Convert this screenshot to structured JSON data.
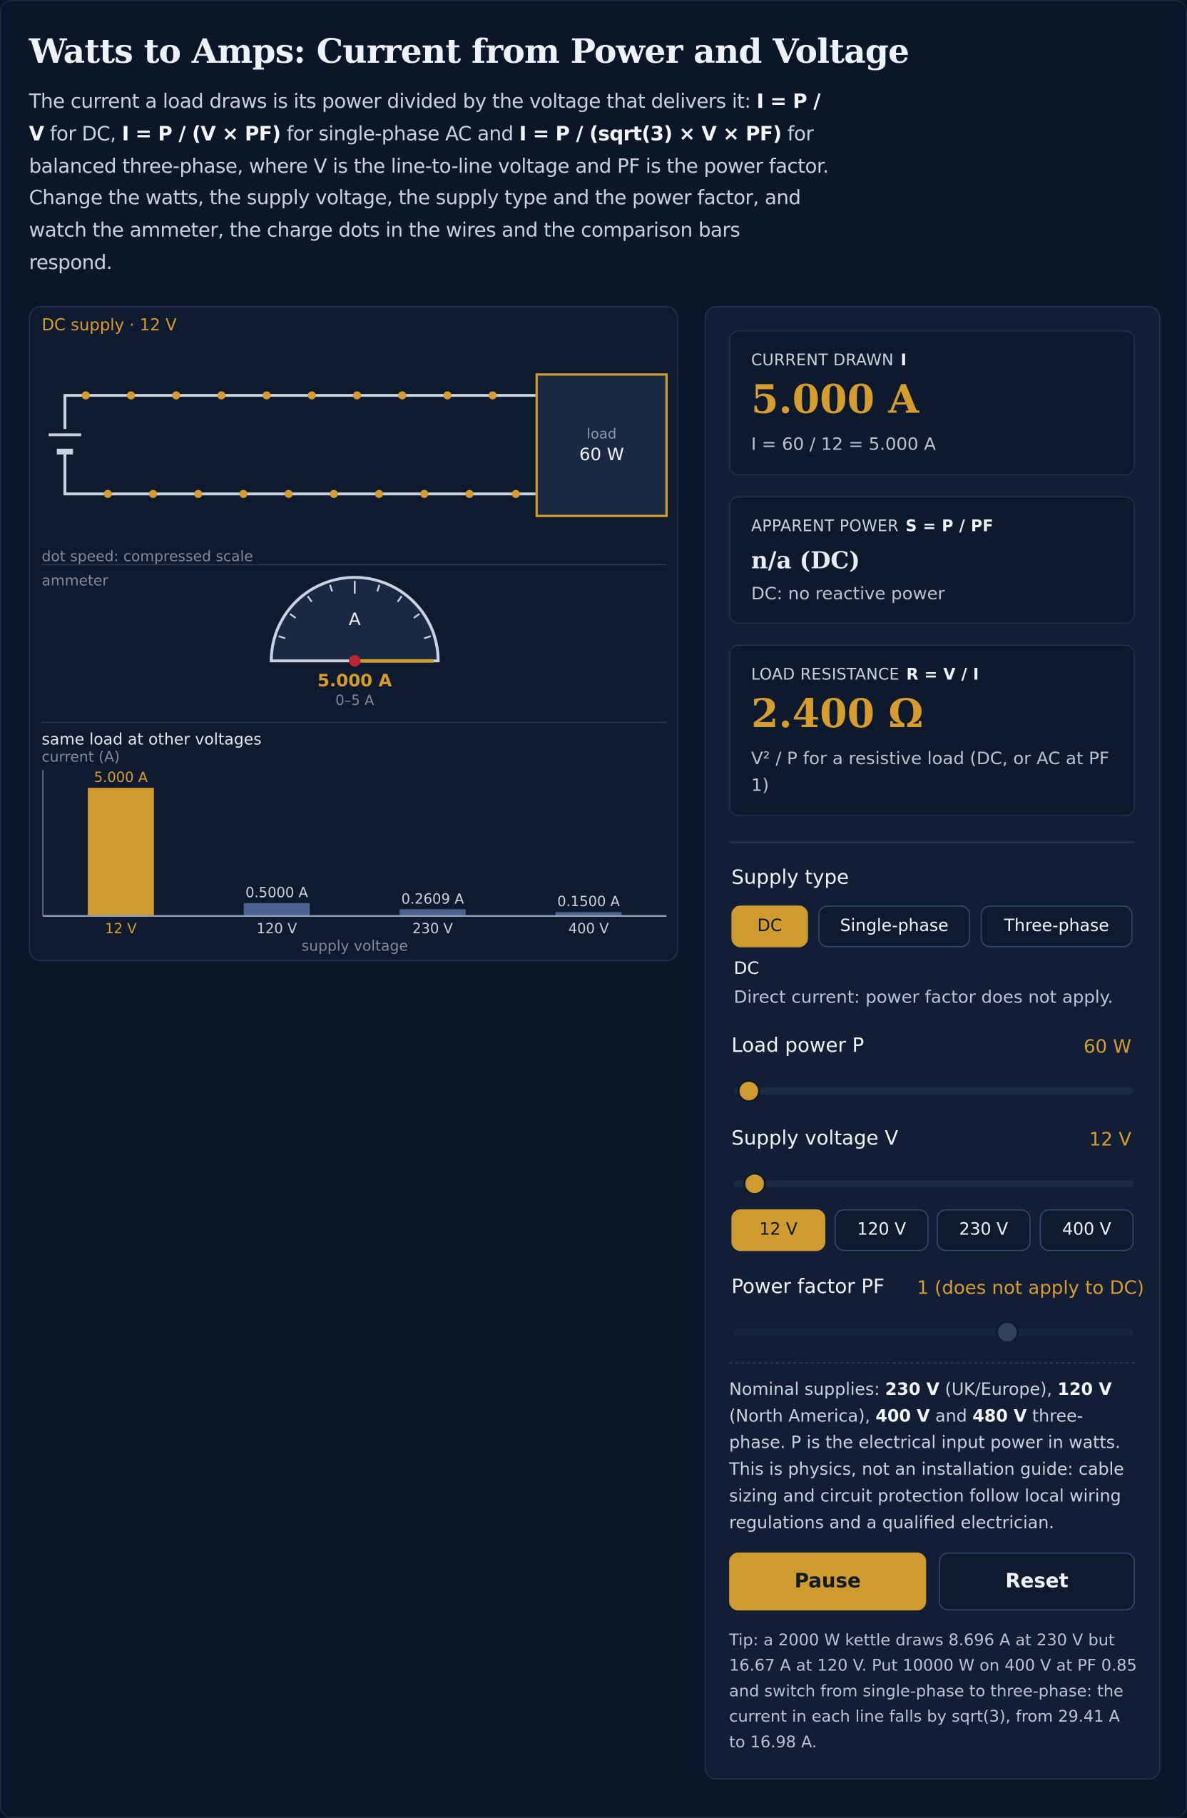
{
  "header": {
    "title": "Watts to Amps: Current from Power and Voltage",
    "intro": [
      "The current a load draws is its power divided by the voltage that delivers it: ",
      "I = P / V",
      " for DC, ",
      "I = P / (V × PF)",
      " for single-phase AC and ",
      "I = P / (sqrt(3) × V × PF)",
      " for balanced three-phase, where V is the line-to-line voltage and PF is the power factor. Change the watts, the supply voltage, the supply type and the power factor, and watch the ammeter, the charge dots in the wires and the comparison bars respond."
    ]
  },
  "circuit": {
    "supply_label": "DC supply · 12 V",
    "load_label": "load",
    "load_power": "60 W",
    "dot_note": "dot speed: compressed scale"
  },
  "ammeter": {
    "title": "ammeter",
    "unit": "A",
    "reading": "5.000 A",
    "range": "0–5 A"
  },
  "chart_data": {
    "type": "bar",
    "title": "same load at other voltages",
    "y_label": "current (A)",
    "x_label": "supply voltage",
    "categories": [
      "12 V",
      "120 V",
      "230 V",
      "400 V"
    ],
    "values": [
      5.0,
      0.5,
      0.2609,
      0.15
    ],
    "value_labels": [
      "5.000 A",
      "0.5000 A",
      "0.2609 A",
      "0.1500 A"
    ],
    "ylim": [
      0,
      5.7
    ],
    "color": "#4a6390",
    "highlight_color": "#cf9a2e",
    "highlight": 0
  },
  "readouts": [
    {
      "label": "CURRENT DRAWN",
      "formula": "I",
      "value": "5.000 A",
      "detail": "I = 60 / 12 = 5.000 A"
    },
    {
      "label": "APPARENT POWER",
      "formula": "S = P / PF",
      "value": "n/a (DC)",
      "detail": "DC: no reactive power"
    },
    {
      "label": "LOAD RESISTANCE",
      "formula": "R = V / I",
      "value": "2.400 Ω",
      "detail": "V² / P for a resistive load (DC, or AC at PF 1)"
    }
  ],
  "controls": {
    "supply_type": {
      "label": "Supply type",
      "options": [
        "DC",
        "Single-phase",
        "Three-phase"
      ],
      "selected": 0,
      "name": "DC",
      "description": "Direct current: power factor does not apply."
    },
    "load_power": {
      "label": "Load power P",
      "value": "60 W"
    },
    "supply_voltage": {
      "label": "Supply voltage V",
      "value": "12 V",
      "presets": [
        "12 V",
        "120 V",
        "230 V",
        "400 V"
      ],
      "selected": 0
    },
    "power_factor": {
      "label": "Power factor PF",
      "value": "1 (does not apply to DC)"
    }
  },
  "note": [
    "Nominal supplies: ",
    "230 V",
    " (UK/Europe), ",
    "120 V",
    " (North America), ",
    "400 V",
    " and ",
    "480 V",
    " three-phase. P is the electrical input power in watts. This is physics, not an installation guide: cable sizing and circuit protection follow local wiring regulations and a qualified electrician."
  ],
  "buttons": [
    "Pause",
    "Reset"
  ],
  "tip": "Tip: a 2000 W kettle draws 8.696 A at 230 V but 16.67 A at 120 V. Put 10000 W on 400 V at PF 0.85 and switch from single-phase to three-phase: the current in each line falls by sqrt(3), from 29.41 A to 16.98 A."
}
